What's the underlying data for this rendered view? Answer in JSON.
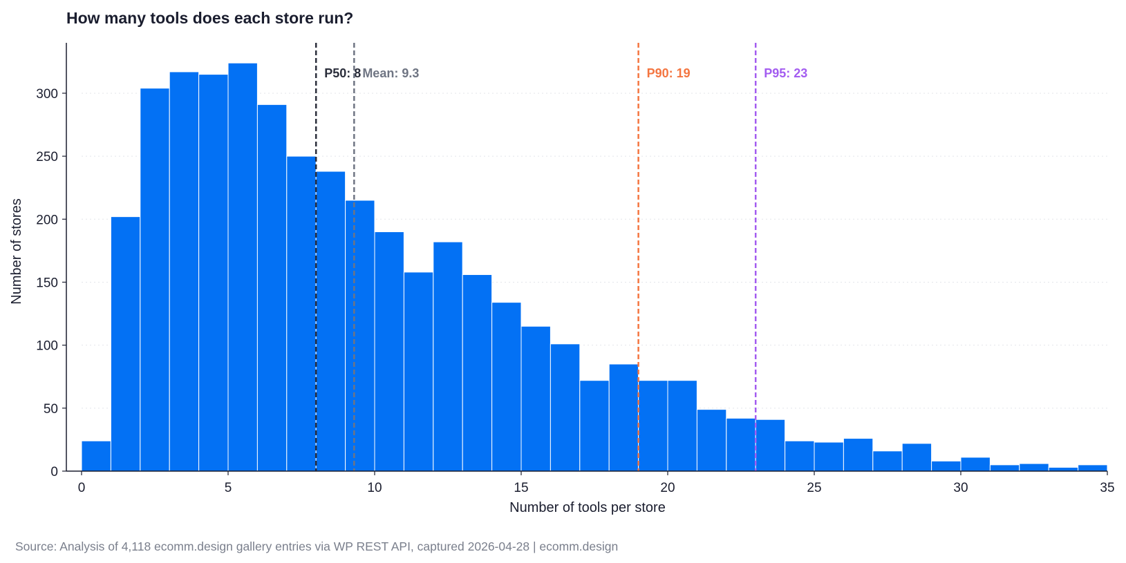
{
  "chart_data": {
    "type": "bar",
    "title": "How many tools does each store run?",
    "xlabel": "Number of tools per store",
    "ylabel": "Number of stores",
    "source": "Source: Analysis of 4,118 ecomm.design gallery entries via WP REST API, captured 2026-04-28 | ecomm.design",
    "xlim": [
      0,
      35
    ],
    "ylim": [
      0,
      340
    ],
    "xticks": [
      0,
      5,
      10,
      15,
      20,
      25,
      30,
      35
    ],
    "yticks": [
      0,
      50,
      100,
      150,
      200,
      250,
      300
    ],
    "grid": "horizontal dotted",
    "bar_color": "#0371f4",
    "bins": [
      {
        "start": 0,
        "end": 1,
        "count": 24
      },
      {
        "start": 1,
        "end": 2,
        "count": 202
      },
      {
        "start": 2,
        "end": 3,
        "count": 304
      },
      {
        "start": 3,
        "end": 4,
        "count": 317
      },
      {
        "start": 4,
        "end": 5,
        "count": 315
      },
      {
        "start": 5,
        "end": 6,
        "count": 324
      },
      {
        "start": 6,
        "end": 7,
        "count": 291
      },
      {
        "start": 7,
        "end": 8,
        "count": 250
      },
      {
        "start": 8,
        "end": 9,
        "count": 238
      },
      {
        "start": 9,
        "end": 10,
        "count": 215
      },
      {
        "start": 10,
        "end": 11,
        "count": 190
      },
      {
        "start": 11,
        "end": 12,
        "count": 158
      },
      {
        "start": 12,
        "end": 13,
        "count": 182
      },
      {
        "start": 13,
        "end": 14,
        "count": 156
      },
      {
        "start": 14,
        "end": 15,
        "count": 134
      },
      {
        "start": 15,
        "end": 16,
        "count": 115
      },
      {
        "start": 16,
        "end": 17,
        "count": 101
      },
      {
        "start": 17,
        "end": 18,
        "count": 72
      },
      {
        "start": 18,
        "end": 19,
        "count": 85
      },
      {
        "start": 19,
        "end": 20,
        "count": 72
      },
      {
        "start": 20,
        "end": 21,
        "count": 72
      },
      {
        "start": 21,
        "end": 22,
        "count": 49
      },
      {
        "start": 22,
        "end": 23,
        "count": 42
      },
      {
        "start": 23,
        "end": 24,
        "count": 41
      },
      {
        "start": 24,
        "end": 25,
        "count": 24
      },
      {
        "start": 25,
        "end": 26,
        "count": 23
      },
      {
        "start": 26,
        "end": 27,
        "count": 26
      },
      {
        "start": 27,
        "end": 28,
        "count": 16
      },
      {
        "start": 28,
        "end": 29,
        "count": 22
      },
      {
        "start": 29,
        "end": 30,
        "count": 8
      },
      {
        "start": 30,
        "end": 31,
        "count": 11
      },
      {
        "start": 31,
        "end": 32,
        "count": 5
      },
      {
        "start": 32,
        "end": 33,
        "count": 6
      },
      {
        "start": 33,
        "end": 34,
        "count": 3
      },
      {
        "start": 34,
        "end": 35,
        "count": 5
      }
    ],
    "reference_lines": [
      {
        "name": "p50",
        "label": "P50: 8",
        "value": 8,
        "color": "#2a2d3a"
      },
      {
        "name": "mean",
        "label": "Mean: 9.3",
        "value": 9.3,
        "color": "#6f7583"
      },
      {
        "name": "p90",
        "label": "P90: 19",
        "value": 19,
        "color": "#f47540"
      },
      {
        "name": "p95",
        "label": "P95: 23",
        "value": 23,
        "color": "#a35cf0"
      }
    ]
  }
}
